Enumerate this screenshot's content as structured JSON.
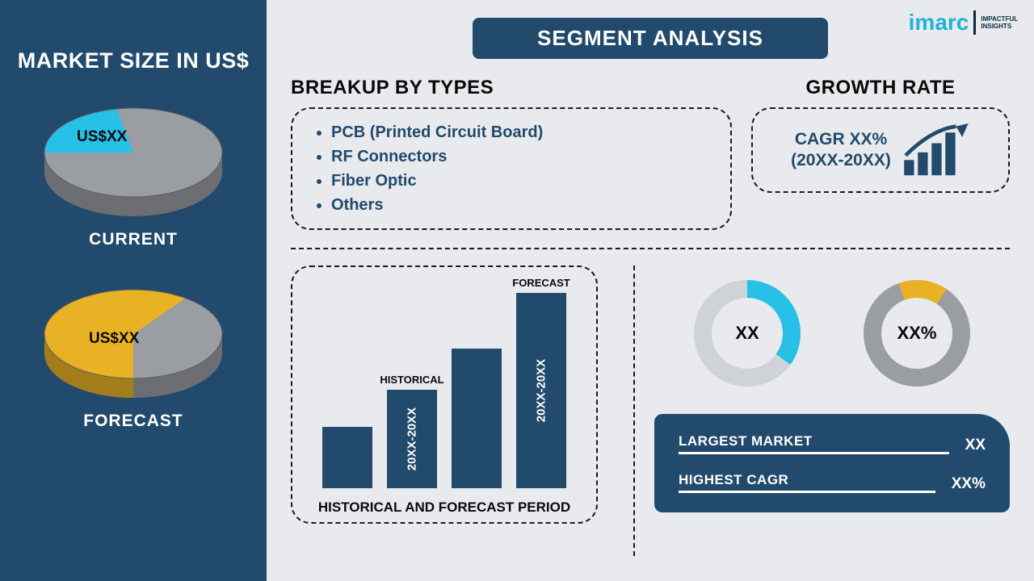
{
  "colors": {
    "brand_dark": "#214a6c",
    "cyan": "#27c0e6",
    "yellow": "#e9b224",
    "grey": "#9a9da2",
    "grey_dark": "#7c7f84",
    "bg": "#e8eaed",
    "donut_track": "#9a9da2"
  },
  "logo": {
    "text": "imarc",
    "sub1": "IMPACTFUL",
    "sub2": "INSIGHTS"
  },
  "sidebar": {
    "title": "MARKET SIZE IN US$",
    "pies": [
      {
        "caption": "CURRENT",
        "value_label": "US$XX",
        "slice_color": "#27c0e6",
        "base_color": "#9a9da2",
        "slice_pct": 22,
        "slice_start_deg": 180
      },
      {
        "caption": "FORECAST",
        "value_label": "US$XX",
        "slice_color": "#e9b224",
        "base_color": "#9a9da2",
        "slice_pct": 60,
        "slice_start_deg": 90
      }
    ]
  },
  "segment_title": "SEGMENT ANALYSIS",
  "breakup": {
    "heading": "BREAKUP BY TYPES",
    "items": [
      "PCB (Printed Circuit Board)",
      "RF Connectors",
      "Fiber Optic",
      "Others"
    ]
  },
  "growth": {
    "heading": "GROWTH RATE",
    "line1": "CAGR XX%",
    "line2": "(20XX-20XX)"
  },
  "hist_chart": {
    "caption": "HISTORICAL AND FORECAST PERIOD",
    "bars": [
      {
        "height_pct": 30,
        "top_label": "",
        "inner_label": ""
      },
      {
        "height_pct": 48,
        "top_label": "HISTORICAL",
        "inner_label": "20XX-20XX"
      },
      {
        "height_pct": 68,
        "top_label": "",
        "inner_label": ""
      },
      {
        "height_pct": 95,
        "top_label": "FORECAST",
        "inner_label": "20XX-20XX"
      }
    ],
    "bar_color": "#214a6c"
  },
  "donuts": [
    {
      "center": "XX",
      "pct": 35,
      "color": "#27c0e6",
      "track": "#cfd2d6",
      "start_deg": 0
    },
    {
      "center": "XX%",
      "pct": 15,
      "color": "#e9b224",
      "track": "#9a9da2",
      "start_deg": -20
    }
  ],
  "stats": {
    "rows": [
      {
        "label": "LARGEST MARKET",
        "value": "XX"
      },
      {
        "label": "HIGHEST CAGR",
        "value": "XX%"
      }
    ]
  }
}
